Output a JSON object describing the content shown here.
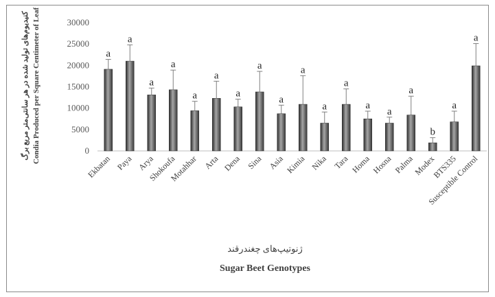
{
  "chart_data": {
    "type": "bar",
    "categories": [
      "Ekbatan",
      "Paya",
      "Arya",
      "Shokoufa",
      "Motahhar",
      "Arta",
      "Dena",
      "Sina",
      "Asia",
      "Kimia",
      "Nika",
      "Tara",
      "Homa",
      "Hosna",
      "Palma",
      "Modex",
      "BTS335",
      "Susceptible Control"
    ],
    "values": [
      19100,
      21000,
      13100,
      14300,
      9400,
      12300,
      10300,
      13800,
      8700,
      10900,
      6500,
      10900,
      7500,
      6500,
      8400,
      1900,
      6800,
      19900
    ],
    "error": [
      2300,
      3800,
      1600,
      4600,
      2200,
      4000,
      1800,
      4800,
      2000,
      6700,
      2600,
      3600,
      1800,
      1400,
      4400,
      1200,
      2500,
      5200
    ],
    "significance": [
      "a",
      "a",
      "a",
      "a",
      "a",
      "a",
      "a",
      "a",
      "a",
      "a",
      "a",
      "a",
      "a",
      "a",
      "a",
      "b",
      "a",
      "a"
    ],
    "yticks": [
      "0",
      "5000",
      "10000",
      "15000",
      "20000",
      "25000",
      "30000"
    ],
    "ylim": [
      0,
      30000
    ],
    "ylabel_fa": "کنیدیوم‌های تولید شده در هر سانتی‌متر مربع برگ",
    "ylabel_en": "Condia Produced per Square Centimeter of Leaf",
    "xlabel_fa": "ژنوتیپ‌های چغندرقند",
    "xlabel_en": "Sugar Beet Genotypes",
    "colors": {
      "bar_dark": "#3a3a3a",
      "bar_light": "#9a9a9a",
      "error": "#7f7f7f",
      "axis": "#bfbfbf"
    }
  }
}
